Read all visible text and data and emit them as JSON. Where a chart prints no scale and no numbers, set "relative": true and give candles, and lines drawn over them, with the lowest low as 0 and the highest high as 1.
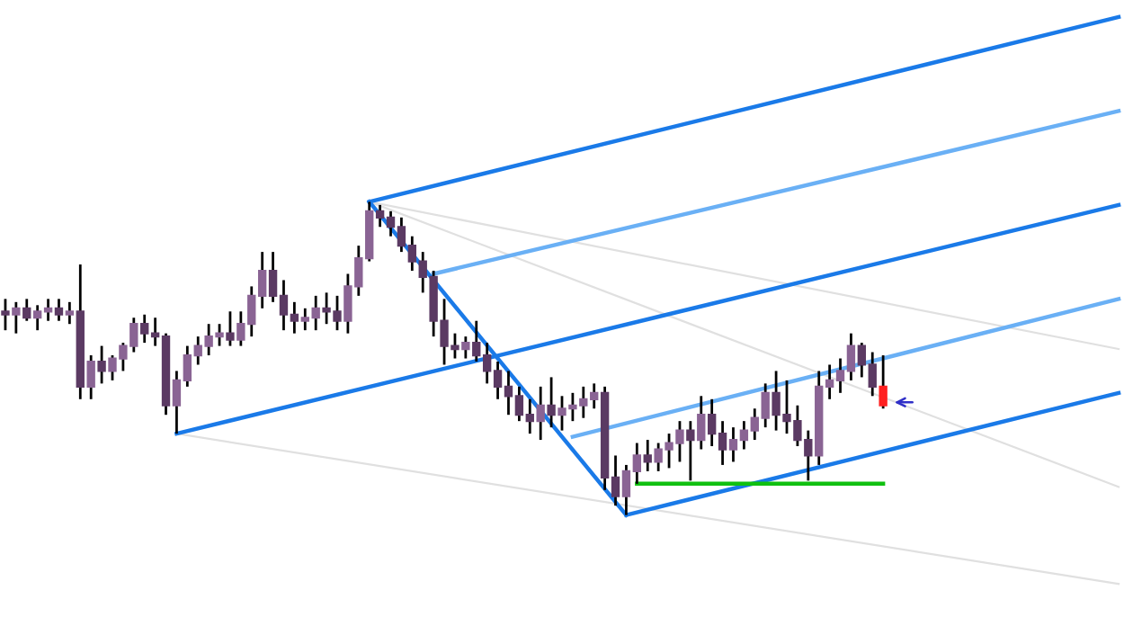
{
  "chart_data": {
    "type": "candlestick",
    "relative": true,
    "categories": [
      null,
      null,
      null,
      null,
      null,
      null,
      null,
      null,
      null,
      null,
      null,
      null,
      null,
      null,
      null,
      null,
      null,
      null,
      null,
      null,
      null,
      null,
      null,
      null,
      null,
      null,
      null,
      null,
      null,
      null,
      null,
      null,
      null,
      null,
      null,
      null,
      null,
      null,
      null,
      null,
      null,
      null,
      null,
      null,
      null,
      null,
      null,
      null,
      null,
      null,
      null,
      null,
      null,
      null,
      null,
      null,
      null,
      null,
      null,
      null,
      null,
      null,
      null,
      null,
      null,
      null,
      null,
      null,
      null,
      null,
      null,
      null,
      null,
      null,
      null,
      null,
      null,
      null,
      null,
      null,
      null,
      null,
      null,
      null,
      null,
      null,
      null,
      null,
      null,
      null,
      null,
      null,
      null,
      null,
      null,
      null,
      null,
      null,
      null,
      null,
      null,
      null,
      null,
      null,
      null
    ],
    "ohlc": [
      [
        0.65,
        0.69,
        0.59,
        0.64
      ],
      [
        0.64,
        0.68,
        0.58,
        0.66
      ],
      [
        0.66,
        0.69,
        0.62,
        0.63
      ],
      [
        0.63,
        0.67,
        0.59,
        0.65
      ],
      [
        0.65,
        0.69,
        0.62,
        0.66
      ],
      [
        0.66,
        0.69,
        0.62,
        0.64
      ],
      [
        0.64,
        0.68,
        0.61,
        0.65
      ],
      [
        0.65,
        0.8,
        0.37,
        0.41
      ],
      [
        0.41,
        0.51,
        0.37,
        0.49
      ],
      [
        0.49,
        0.54,
        0.42,
        0.46
      ],
      [
        0.46,
        0.51,
        0.43,
        0.5
      ],
      [
        0.5,
        0.55,
        0.46,
        0.54
      ],
      [
        0.54,
        0.63,
        0.52,
        0.61
      ],
      [
        0.61,
        0.64,
        0.55,
        0.58
      ],
      [
        0.58,
        0.63,
        0.54,
        0.57
      ],
      [
        0.57,
        0.58,
        0.32,
        0.35
      ],
      [
        0.35,
        0.46,
        0.26,
        0.43
      ],
      [
        0.43,
        0.54,
        0.41,
        0.51
      ],
      [
        0.51,
        0.57,
        0.48,
        0.54
      ],
      [
        0.54,
        0.61,
        0.51,
        0.57
      ],
      [
        0.57,
        0.61,
        0.54,
        0.58
      ],
      [
        0.58,
        0.65,
        0.54,
        0.56
      ],
      [
        0.56,
        0.65,
        0.54,
        0.61
      ],
      [
        0.61,
        0.73,
        0.57,
        0.7
      ],
      [
        0.7,
        0.84,
        0.66,
        0.78
      ],
      [
        0.78,
        0.84,
        0.68,
        0.7
      ],
      [
        0.7,
        0.75,
        0.59,
        0.64
      ],
      [
        0.64,
        0.68,
        0.58,
        0.62
      ],
      [
        0.62,
        0.66,
        0.59,
        0.63
      ],
      [
        0.63,
        0.7,
        0.59,
        0.66
      ],
      [
        0.66,
        0.71,
        0.61,
        0.65
      ],
      [
        0.65,
        0.7,
        0.59,
        0.62
      ],
      [
        0.62,
        0.77,
        0.58,
        0.73
      ],
      [
        0.73,
        0.86,
        0.7,
        0.82
      ],
      [
        0.82,
        1.0,
        0.81,
        0.97
      ],
      [
        0.97,
        0.99,
        0.92,
        0.95
      ],
      [
        0.95,
        0.97,
        0.89,
        0.92
      ],
      [
        0.92,
        0.95,
        0.84,
        0.86
      ],
      [
        0.86,
        0.89,
        0.78,
        0.81
      ],
      [
        0.81,
        0.84,
        0.71,
        0.76
      ],
      [
        0.76,
        0.78,
        0.57,
        0.62
      ],
      [
        0.62,
        0.69,
        0.48,
        0.54
      ],
      [
        0.54,
        0.58,
        0.5,
        0.53
      ],
      [
        0.53,
        0.57,
        0.5,
        0.55
      ],
      [
        0.55,
        0.62,
        0.49,
        0.51
      ],
      [
        0.51,
        0.55,
        0.42,
        0.46
      ],
      [
        0.46,
        0.49,
        0.37,
        0.41
      ],
      [
        0.41,
        0.46,
        0.32,
        0.38
      ],
      [
        0.38,
        0.41,
        0.3,
        0.32
      ],
      [
        0.32,
        0.37,
        0.26,
        0.3
      ],
      [
        0.3,
        0.41,
        0.24,
        0.35
      ],
      [
        0.35,
        0.44,
        0.28,
        0.32
      ],
      [
        0.32,
        0.38,
        0.27,
        0.34
      ],
      [
        0.34,
        0.39,
        0.3,
        0.35
      ],
      [
        0.35,
        0.41,
        0.31,
        0.37
      ],
      [
        0.37,
        0.42,
        0.34,
        0.39
      ],
      [
        0.39,
        0.41,
        0.08,
        0.12
      ],
      [
        0.12,
        0.19,
        0.03,
        0.06
      ],
      [
        0.06,
        0.16,
        0.0,
        0.14
      ],
      [
        0.14,
        0.23,
        0.1,
        0.19
      ],
      [
        0.19,
        0.24,
        0.14,
        0.17
      ],
      [
        0.17,
        0.23,
        0.14,
        0.21
      ],
      [
        0.21,
        0.26,
        0.15,
        0.23
      ],
      [
        0.23,
        0.3,
        0.17,
        0.27
      ],
      [
        0.27,
        0.3,
        0.11,
        0.24
      ],
      [
        0.24,
        0.38,
        0.21,
        0.32
      ],
      [
        0.32,
        0.37,
        0.22,
        0.26
      ],
      [
        0.26,
        0.3,
        0.16,
        0.21
      ],
      [
        0.21,
        0.28,
        0.17,
        0.24
      ],
      [
        0.24,
        0.3,
        0.21,
        0.27
      ],
      [
        0.27,
        0.34,
        0.24,
        0.31
      ],
      [
        0.31,
        0.42,
        0.28,
        0.39
      ],
      [
        0.39,
        0.46,
        0.27,
        0.32
      ],
      [
        0.32,
        0.43,
        0.26,
        0.3
      ],
      [
        0.3,
        0.35,
        0.22,
        0.24
      ],
      [
        0.24,
        0.27,
        0.11,
        0.19
      ],
      [
        0.19,
        0.46,
        0.16,
        0.41
      ],
      [
        0.41,
        0.48,
        0.37,
        0.43
      ],
      [
        0.43,
        0.5,
        0.39,
        0.46
      ],
      [
        0.46,
        0.58,
        0.43,
        0.54
      ],
      [
        0.54,
        0.55,
        0.44,
        0.48
      ],
      [
        0.48,
        0.52,
        0.38,
        0.41
      ],
      [
        0.41,
        0.51,
        0.34,
        0.35
      ],
      null,
      null,
      null,
      null,
      null,
      null,
      null,
      null,
      null,
      null,
      null,
      null,
      null,
      null,
      null,
      null,
      null,
      null,
      null,
      null,
      null,
      null
    ],
    "colors": [
      "#5b3a63",
      "#8a6494",
      "#5b3a63",
      "#8a6494",
      "#8a6494",
      "#5b3a63",
      "#8a6494",
      "#5b3a63",
      "#8a6494",
      "#5b3a63",
      "#8a6494",
      "#8a6494",
      "#8a6494",
      "#5b3a63",
      "#5b3a63",
      "#5b3a63",
      "#8a6494",
      "#8a6494",
      "#8a6494",
      "#8a6494",
      "#8a6494",
      "#5b3a63",
      "#8a6494",
      "#8a6494",
      "#8a6494",
      "#5b3a63",
      "#5b3a63",
      "#5b3a63",
      "#8a6494",
      "#8a6494",
      "#5b3a63",
      "#5b3a63",
      "#8a6494",
      "#8a6494",
      "#8a6494",
      "#5b3a63",
      "#5b3a63",
      "#5b3a63",
      "#5b3a63",
      "#5b3a63",
      "#5b3a63",
      "#5b3a63",
      "#5b3a63",
      "#8a6494",
      "#5b3a63",
      "#5b3a63",
      "#5b3a63",
      "#5b3a63",
      "#5b3a63",
      "#5b3a63",
      "#8a6494",
      "#5b3a63",
      "#8a6494",
      "#8a6494",
      "#8a6494",
      "#8a6494",
      "#5b3a63",
      "#5b3a63",
      "#8a6494",
      "#8a6494",
      "#5b3a63",
      "#8a6494",
      "#8a6494",
      "#8a6494",
      "#5b3a63",
      "#8a6494",
      "#5b3a63",
      "#5b3a63",
      "#8a6494",
      "#8a6494",
      "#8a6494",
      "#8a6494",
      "#5b3a63",
      "#5b3a63",
      "#5b3a63",
      "#5b3a63",
      "#8a6494",
      "#8a6494",
      "#8a6494",
      "#8a6494",
      "#5b3a63",
      "#5b3a63",
      "#ff2020",
      null,
      null,
      null,
      null,
      null,
      null,
      null,
      null,
      null,
      null,
      null,
      null,
      null,
      null,
      null,
      null,
      null,
      null,
      null,
      null,
      null,
      null
    ],
    "series": [
      {
        "type": "line",
        "color": "#e0e0e0",
        "values": [
          null,
          null,
          null,
          null,
          null,
          null,
          null,
          null,
          null,
          null,
          null,
          null,
          null,
          null,
          null,
          null,
          null,
          null,
          null,
          null,
          null,
          null,
          null,
          null,
          null,
          null,
          null,
          null,
          null,
          null,
          null,
          null,
          null,
          null,
          1.0,
          null,
          null,
          null,
          null,
          null,
          null,
          null,
          null,
          null,
          null,
          null,
          null,
          null,
          null,
          null,
          null,
          null,
          null,
          null,
          null,
          null,
          null,
          null,
          null,
          null,
          null,
          null,
          null,
          null,
          null,
          null,
          null,
          null,
          null,
          null,
          null,
          null,
          null,
          null,
          null,
          null,
          null,
          null,
          null,
          null,
          null,
          null,
          null,
          null,
          null,
          null,
          null,
          null,
          null,
          null,
          null,
          null,
          null,
          null,
          null,
          null,
          null,
          null,
          null,
          null,
          null,
          null,
          null,
          null,
          0.53
        ]
      },
      {
        "type": "line",
        "color": "#e0e0e0",
        "values": [
          null,
          null,
          null,
          null,
          null,
          null,
          null,
          null,
          null,
          null,
          null,
          null,
          null,
          null,
          null,
          null,
          null,
          null,
          null,
          null,
          null,
          null,
          null,
          null,
          null,
          null,
          null,
          null,
          null,
          null,
          null,
          null,
          null,
          null,
          1.0,
          null,
          null,
          null,
          null,
          null,
          null,
          null,
          null,
          null,
          null,
          null,
          null,
          null,
          null,
          null,
          null,
          null,
          null,
          null,
          null,
          null,
          null,
          null,
          null,
          null,
          null,
          null,
          null,
          null,
          null,
          null,
          null,
          null,
          null,
          null,
          null,
          null,
          null,
          null,
          null,
          null,
          null,
          null,
          null,
          null,
          null,
          null,
          null,
          null,
          null,
          null,
          null,
          null,
          null,
          null,
          null,
          null,
          null,
          null,
          null,
          null,
          null,
          null,
          null,
          null,
          null,
          null,
          null,
          null,
          0.09
        ]
      },
      {
        "type": "line",
        "color": "#e0e0e0",
        "values": [
          null,
          null,
          null,
          null,
          null,
          null,
          null,
          null,
          null,
          null,
          null,
          null,
          null,
          null,
          null,
          null,
          0.26,
          null,
          null,
          null,
          null,
          null,
          null,
          null,
          null,
          null,
          null,
          null,
          null,
          null,
          null,
          null,
          null,
          null,
          null,
          null,
          null,
          null,
          null,
          null,
          null,
          null,
          null,
          null,
          null,
          null,
          null,
          null,
          null,
          null,
          null,
          null,
          null,
          null,
          null,
          null,
          null,
          null,
          null,
          null,
          null,
          null,
          null,
          null,
          null,
          null,
          null,
          null,
          null,
          null,
          null,
          null,
          null,
          null,
          null,
          null,
          null,
          null,
          null,
          null,
          null,
          null,
          null,
          null,
          null,
          null,
          null,
          null,
          null,
          null,
          null,
          null,
          null,
          null,
          null,
          null,
          null,
          null,
          null,
          null,
          null,
          null,
          null,
          null,
          -0.22
        ]
      },
      {
        "type": "line",
        "color": "#1a7ae8",
        "values": [
          null,
          null,
          null,
          null,
          null,
          null,
          null,
          null,
          null,
          null,
          null,
          null,
          null,
          null,
          null,
          null,
          null,
          null,
          null,
          null,
          null,
          null,
          null,
          null,
          null,
          null,
          null,
          null,
          null,
          null,
          null,
          null,
          null,
          null,
          1.0,
          null,
          null,
          null,
          null,
          null,
          null,
          null,
          null,
          null,
          null,
          null,
          null,
          null,
          null,
          null,
          null,
          null,
          null,
          null,
          null,
          null,
          null,
          null,
          null,
          null,
          null,
          null,
          null,
          null,
          null,
          null,
          null,
          null,
          null,
          null,
          null,
          null,
          null,
          null,
          null,
          null,
          null,
          null,
          null,
          null,
          null,
          null,
          null,
          null,
          null,
          null,
          null,
          null,
          null,
          null,
          null,
          null,
          null,
          null,
          null,
          null,
          null,
          null,
          null,
          null,
          null,
          null,
          null,
          null,
          1.59
        ]
      },
      {
        "type": "line",
        "color": "#6ab0f5",
        "values": [
          null,
          null,
          null,
          null,
          null,
          null,
          null,
          null,
          null,
          null,
          null,
          null,
          null,
          null,
          null,
          null,
          null,
          null,
          null,
          null,
          null,
          null,
          null,
          null,
          null,
          null,
          null,
          null,
          null,
          null,
          null,
          null,
          null,
          null,
          null,
          null,
          null,
          null,
          null,
          null,
          0.77,
          null,
          null,
          null,
          null,
          null,
          null,
          null,
          null,
          null,
          null,
          null,
          null,
          null,
          null,
          null,
          null,
          null,
          null,
          null,
          null,
          null,
          null,
          null,
          null,
          null,
          null,
          null,
          null,
          null,
          null,
          null,
          null,
          null,
          null,
          null,
          null,
          null,
          null,
          null,
          null,
          null,
          null,
          null,
          null,
          null,
          null,
          null,
          null,
          null,
          null,
          null,
          null,
          null,
          null,
          null,
          null,
          null,
          null,
          null,
          null,
          null,
          null,
          null,
          1.29
        ]
      },
      {
        "type": "line",
        "color": "#1a7ae8",
        "values": [
          null,
          null,
          null,
          null,
          null,
          null,
          null,
          null,
          null,
          null,
          null,
          null,
          null,
          null,
          null,
          null,
          0.26,
          null,
          null,
          null,
          null,
          null,
          null,
          null,
          null,
          null,
          null,
          null,
          null,
          null,
          null,
          null,
          null,
          null,
          null,
          null,
          null,
          null,
          null,
          null,
          null,
          null,
          null,
          null,
          null,
          null,
          null,
          null,
          null,
          null,
          null,
          null,
          null,
          null,
          null,
          null,
          null,
          null,
          null,
          null,
          null,
          null,
          null,
          null,
          null,
          null,
          null,
          null,
          null,
          null,
          null,
          null,
          null,
          null,
          null,
          null,
          null,
          null,
          null,
          null,
          null,
          null,
          null,
          null,
          null,
          null,
          null,
          null,
          null,
          null,
          null,
          null,
          null,
          null,
          null,
          null,
          null,
          null,
          null,
          null,
          null,
          null,
          null,
          null,
          0.99
        ]
      },
      {
        "type": "line",
        "color": "#6ab0f5",
        "values": [
          null,
          null,
          null,
          null,
          null,
          null,
          null,
          null,
          null,
          null,
          null,
          null,
          null,
          null,
          null,
          null,
          null,
          null,
          null,
          null,
          null,
          null,
          null,
          null,
          null,
          null,
          null,
          null,
          null,
          null,
          null,
          null,
          null,
          null,
          null,
          null,
          null,
          null,
          null,
          null,
          null,
          null,
          null,
          null,
          null,
          null,
          null,
          null,
          null,
          null,
          null,
          null,
          null,
          0.25,
          null,
          null,
          null,
          null,
          null,
          null,
          null,
          null,
          null,
          null,
          null,
          null,
          null,
          null,
          null,
          null,
          null,
          null,
          null,
          null,
          null,
          null,
          null,
          null,
          null,
          null,
          null,
          null,
          null,
          null,
          null,
          null,
          null,
          null,
          null,
          null,
          null,
          null,
          null,
          null,
          null,
          null,
          null,
          null,
          null,
          null,
          null,
          null,
          null,
          null,
          0.69
        ]
      },
      {
        "type": "line",
        "color": "#1a7ae8",
        "values": [
          null,
          null,
          null,
          null,
          null,
          null,
          null,
          null,
          null,
          null,
          null,
          null,
          null,
          null,
          null,
          null,
          null,
          null,
          null,
          null,
          null,
          null,
          null,
          null,
          null,
          null,
          null,
          null,
          null,
          null,
          null,
          null,
          null,
          null,
          null,
          null,
          null,
          null,
          null,
          null,
          null,
          null,
          null,
          null,
          null,
          null,
          null,
          null,
          null,
          null,
          null,
          null,
          null,
          null,
          null,
          null,
          null,
          null,
          0.0,
          null,
          null,
          null,
          null,
          null,
          null,
          null,
          null,
          null,
          null,
          null,
          null,
          null,
          null,
          null,
          null,
          null,
          null,
          null,
          null,
          null,
          null,
          null,
          null,
          null,
          null,
          null,
          null,
          null,
          null,
          null,
          null,
          null,
          null,
          null,
          null,
          null,
          null,
          null,
          null,
          null,
          null,
          null,
          null,
          null,
          0.39
        ]
      },
      {
        "type": "line",
        "color": "#1a7ae8",
        "values": [
          null,
          null,
          null,
          null,
          null,
          null,
          null,
          null,
          null,
          null,
          null,
          null,
          null,
          null,
          null,
          null,
          null,
          null,
          null,
          null,
          null,
          null,
          null,
          null,
          null,
          null,
          null,
          null,
          null,
          null,
          null,
          null,
          null,
          null,
          1.0,
          null,
          null,
          null,
          null,
          null,
          null,
          null,
          null,
          null,
          null,
          null,
          null,
          null,
          null,
          null,
          null,
          null,
          null,
          null,
          null,
          null,
          null,
          null,
          0.0,
          null,
          null,
          null,
          null,
          null,
          null,
          null,
          null,
          null,
          null,
          null,
          null,
          null,
          null,
          null,
          null,
          null,
          null,
          null,
          null,
          null,
          null,
          null,
          null,
          null,
          null,
          null,
          null,
          null,
          null,
          null,
          null,
          null,
          null,
          null,
          null,
          null,
          null,
          null,
          null,
          null,
          null,
          null,
          null,
          null,
          null
        ]
      },
      {
        "type": "line",
        "color": "#10c010",
        "values": [
          null,
          null,
          null,
          null,
          null,
          null,
          null,
          null,
          null,
          null,
          null,
          null,
          null,
          null,
          null,
          null,
          null,
          null,
          null,
          null,
          null,
          null,
          null,
          null,
          null,
          null,
          null,
          null,
          null,
          null,
          null,
          null,
          null,
          null,
          null,
          null,
          null,
          null,
          null,
          null,
          null,
          null,
          null,
          null,
          null,
          null,
          null,
          null,
          null,
          null,
          null,
          null,
          null,
          null,
          null,
          null,
          null,
          null,
          null,
          0.1,
          null,
          null,
          null,
          null,
          null,
          null,
          null,
          null,
          null,
          null,
          null,
          null,
          null,
          null,
          null,
          null,
          null,
          null,
          null,
          null,
          null,
          null,
          0.1,
          null,
          null,
          null,
          null,
          null,
          null,
          null,
          null,
          null,
          null,
          null,
          null,
          null,
          null,
          null,
          null,
          null,
          null,
          null,
          null,
          null,
          null
        ]
      }
    ]
  }
}
